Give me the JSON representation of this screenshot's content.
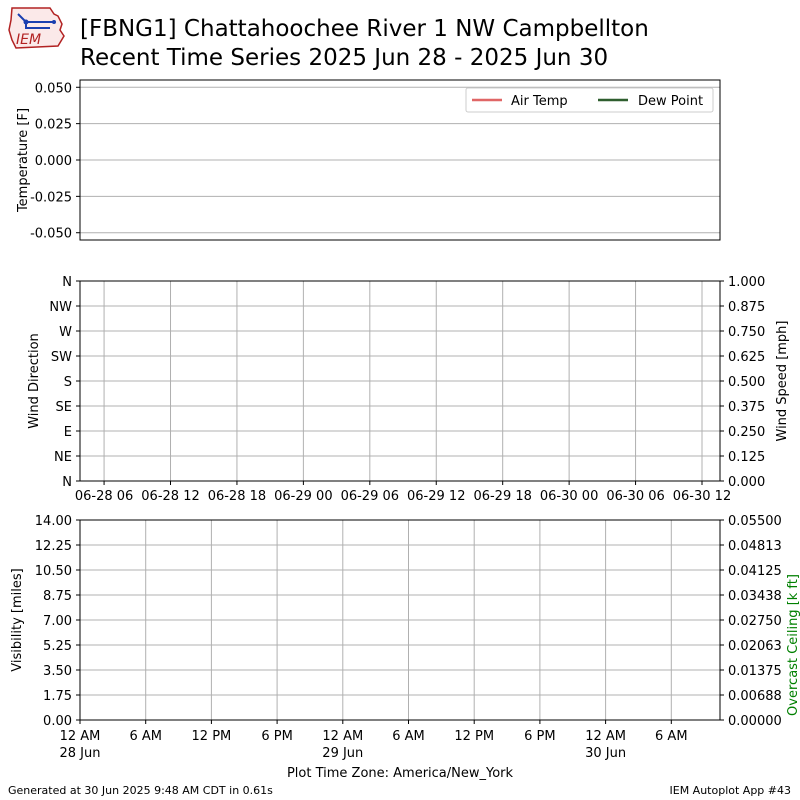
{
  "header": {
    "title_line1": "[FBNG1] Chattahoochee River 1 NW Campbellton",
    "title_line2": "Recent Time Series 2025 Jun 28 - 2025 Jun 30",
    "logo_text": "IEM"
  },
  "footer": {
    "generated": "Generated at 30 Jun 2025 9:48 AM CDT in 0.61s",
    "app": "IEM Autoplot App #43",
    "timezone_label": "Plot Time Zone: America/New_York"
  },
  "colors": {
    "air_temp": "#e06666",
    "dew_point": "#2e5e2e",
    "ceiling_label": "#008000",
    "grid": "#b0b0b0"
  },
  "chart_data": [
    {
      "type": "line",
      "panel": "temperature",
      "ylabel": "Temperature [F]",
      "ylim": [
        -0.055,
        0.055
      ],
      "y_ticks": [
        "0.050",
        "0.025",
        "0.000",
        "-0.025",
        "-0.050"
      ],
      "y_tick_values": [
        0.05,
        0.025,
        0.0,
        -0.025,
        -0.05
      ],
      "grid": true,
      "legend_position": "top-right",
      "series": [
        {
          "name": "Air Temp",
          "values": []
        },
        {
          "name": "Dew Point",
          "values": []
        }
      ]
    },
    {
      "type": "scatter",
      "panel": "wind",
      "ylabel": "Wind Direction",
      "y2label": "Wind Speed [mph]",
      "y_ticks": [
        "N",
        "NW",
        "W",
        "SW",
        "S",
        "SE",
        "E",
        "NE",
        "N"
      ],
      "y2_ticks": [
        "1.000",
        "0.875",
        "0.750",
        "0.625",
        "0.500",
        "0.375",
        "0.250",
        "0.125",
        "0.000"
      ],
      "y2lim": [
        0,
        1
      ],
      "x_ticks": [
        "06-28 06",
        "06-28 12",
        "06-28 18",
        "06-29 00",
        "06-29 06",
        "06-29 12",
        "06-29 18",
        "06-30 00",
        "06-30 06",
        "06-30 12"
      ],
      "grid": true,
      "series": []
    },
    {
      "type": "line",
      "panel": "visibility",
      "ylabel": "Visibility [miles]",
      "y2label": "Overcast Ceiling [k ft]",
      "ylim": [
        0,
        14
      ],
      "y_ticks": [
        "14.00",
        "12.25",
        "10.50",
        "8.75",
        "7.00",
        "5.25",
        "3.50",
        "1.75",
        "0.00"
      ],
      "y2lim": [
        0,
        0.055
      ],
      "y2_ticks": [
        "0.05500",
        "0.04813",
        "0.04125",
        "0.03438",
        "0.02750",
        "0.02063",
        "0.01375",
        "0.00688",
        "0.00000"
      ],
      "x_ticks": [
        "12 AM",
        "6 AM",
        "12 PM",
        "6 PM",
        "12 AM",
        "6 AM",
        "12 PM",
        "6 PM",
        "12 AM",
        "6 AM"
      ],
      "x_tick_sublabels": [
        "28 Jun",
        "",
        "",
        "",
        "29 Jun",
        "",
        "",
        "",
        "30 Jun",
        ""
      ],
      "grid": true,
      "series": []
    }
  ]
}
